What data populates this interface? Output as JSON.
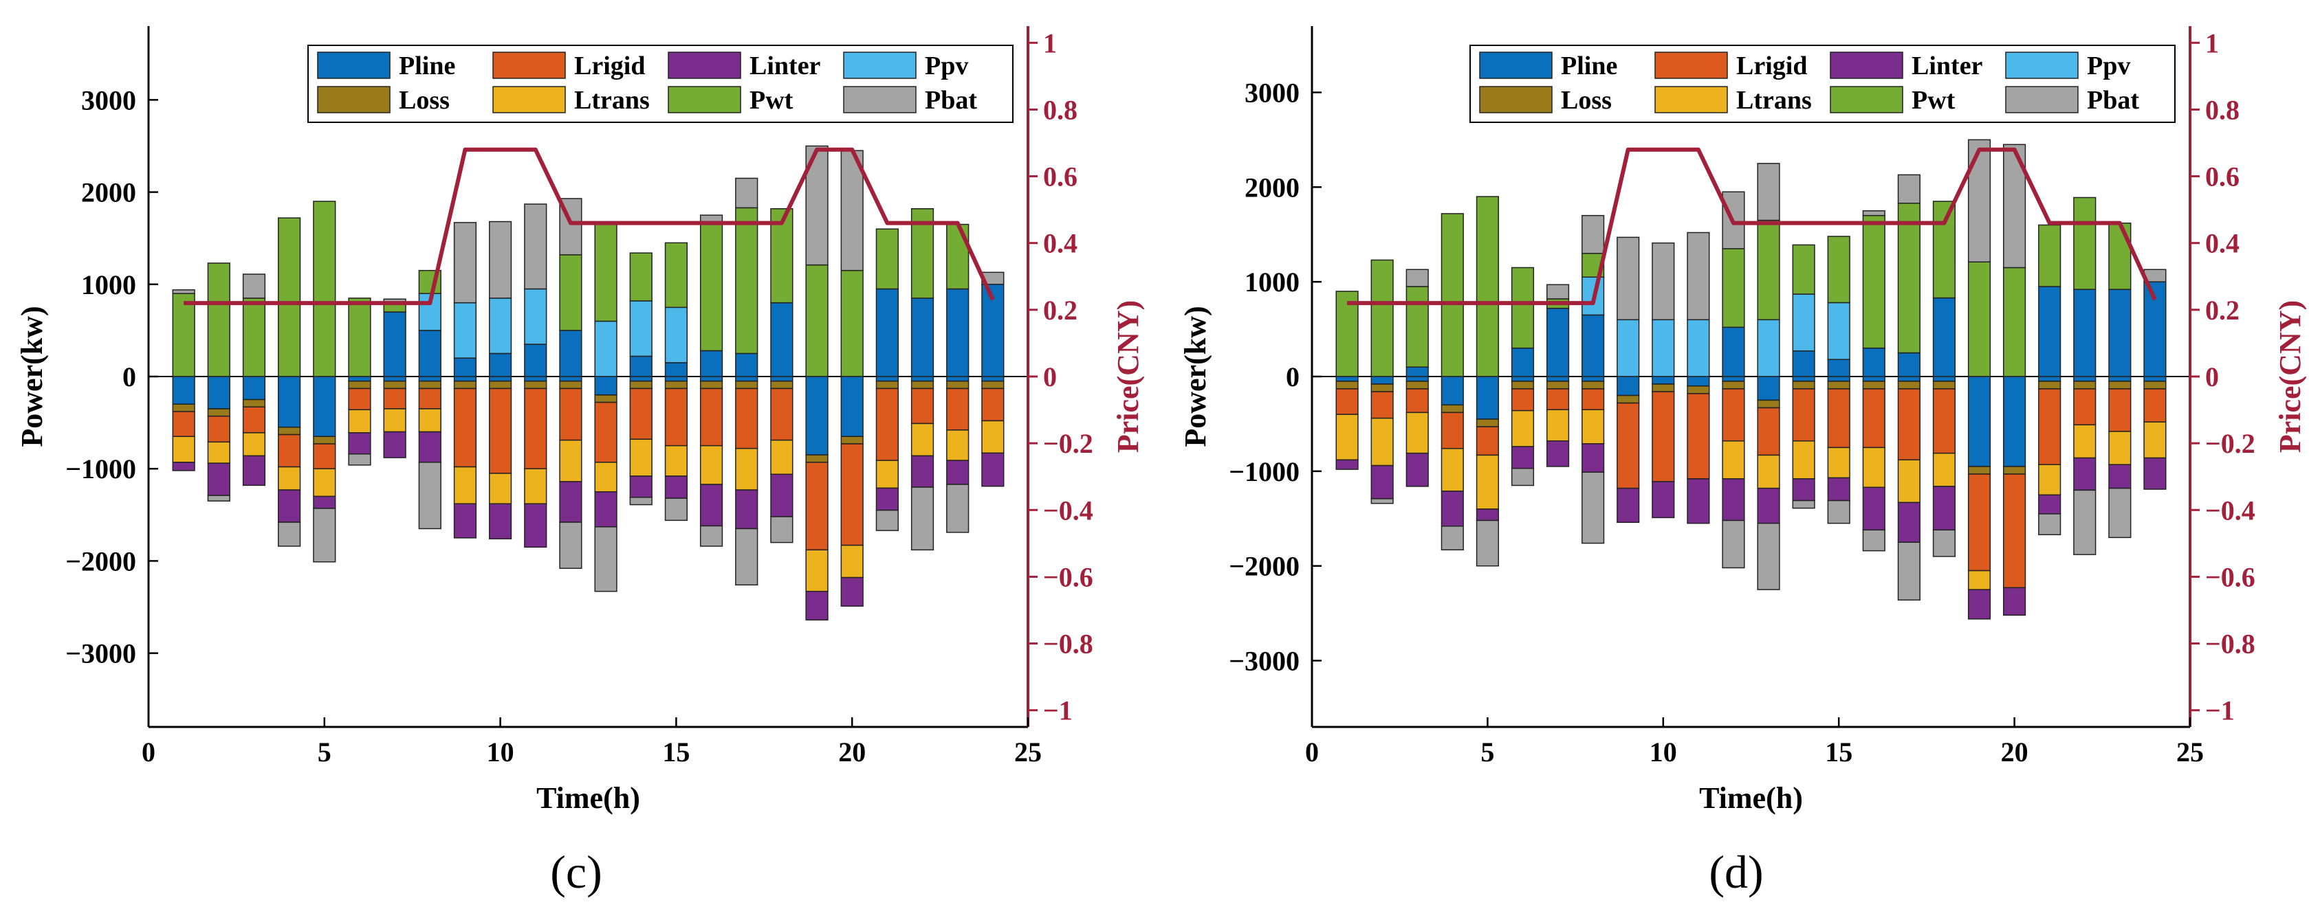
{
  "colors": {
    "Pline": "#0a6fbd",
    "Lrigid": "#dc5a1e",
    "Linter": "#7b2d8e",
    "Ppv": "#4db8ea",
    "Loss": "#9a7b1c",
    "Ltrans": "#edb31f",
    "Pwt": "#74ac34",
    "Pbat": "#a4a4a4",
    "price": "#a2203a"
  },
  "chart_data": [
    {
      "panel_label": "(c)",
      "type": "bar",
      "stacked": true,
      "xlabel": "Time(h)",
      "ylabel": "Power(kw)",
      "y2label": "Price(CNY)",
      "xlim": [
        0,
        25
      ],
      "ylim": [
        -3800,
        3800
      ],
      "y2lim": [
        -1.05,
        1.05
      ],
      "xticks": [
        0,
        5,
        10,
        15,
        20,
        25
      ],
      "yticks": [
        -3000,
        -2000,
        -1000,
        0,
        1000,
        2000,
        3000
      ],
      "y2ticks": [
        -1,
        -0.8,
        -0.6,
        -0.4,
        -0.2,
        0,
        0.2,
        0.4,
        0.6,
        0.8,
        1
      ],
      "y2ticklabels": [
        "−1",
        "−0.8",
        "−0.6",
        "−0.4",
        "−0.2",
        "0",
        "0.2",
        "0.4",
        "0.6",
        "0.8",
        "1"
      ],
      "yticklabels": [
        "−3000",
        "−2000",
        "−1000",
        "0",
        "1000",
        "2000",
        "3000"
      ],
      "legend": {
        "position": "top-right",
        "entries": [
          "Pline",
          "Lrigid",
          "Linter",
          "Ppv",
          "Loss",
          "Ltrans",
          "Pwt",
          "Pbat"
        ]
      },
      "x": [
        1,
        2,
        3,
        4,
        5,
        6,
        7,
        8,
        9,
        10,
        11,
        12,
        13,
        14,
        15,
        16,
        17,
        18,
        19,
        20,
        21,
        22,
        23,
        24
      ],
      "positive_series": [
        {
          "name": "Pline",
          "values": [
            0,
            0,
            0,
            0,
            0,
            0,
            700,
            500,
            200,
            250,
            350,
            500,
            0,
            220,
            150,
            280,
            250,
            800,
            0,
            0,
            950,
            850,
            950,
            1000
          ]
        },
        {
          "name": "Ppv",
          "values": [
            0,
            0,
            0,
            0,
            0,
            0,
            0,
            400,
            600,
            600,
            600,
            0,
            600,
            600,
            600,
            0,
            0,
            0,
            0,
            0,
            0,
            0,
            0,
            0
          ]
        },
        {
          "name": "Pwt",
          "values": [
            900,
            1230,
            850,
            1720,
            1900,
            850,
            100,
            250,
            0,
            0,
            0,
            820,
            1050,
            520,
            700,
            1400,
            1580,
            1020,
            1210,
            1150,
            650,
            970,
            700,
            0
          ]
        },
        {
          "name": "Pbat",
          "values": [
            40,
            0,
            260,
            0,
            0,
            0,
            40,
            0,
            870,
            830,
            920,
            610,
            0,
            0,
            0,
            70,
            320,
            0,
            1290,
            1300,
            0,
            0,
            0,
            130
          ]
        }
      ],
      "negative_series": [
        {
          "name": "Pline",
          "values": [
            -300,
            -350,
            -250,
            -550,
            -650,
            -50,
            -50,
            -50,
            -50,
            -50,
            -50,
            -50,
            -200,
            -50,
            -50,
            -50,
            -50,
            -50,
            -850,
            -650,
            -50,
            -50,
            -50,
            -50
          ]
        },
        {
          "name": "Loss",
          "values": [
            -80,
            -80,
            -80,
            -80,
            -80,
            -80,
            -80,
            -80,
            -80,
            -80,
            -80,
            -80,
            -80,
            -80,
            -80,
            -80,
            -80,
            -80,
            -80,
            -80,
            -80,
            -80,
            -80,
            -80
          ]
        },
        {
          "name": "Lrigid",
          "values": [
            -270,
            -280,
            -280,
            -350,
            -270,
            -230,
            -220,
            -220,
            -850,
            -920,
            -870,
            -560,
            -650,
            -550,
            -620,
            -620,
            -650,
            -560,
            -950,
            -1100,
            -780,
            -380,
            -450,
            -350
          ]
        },
        {
          "name": "Ltrans",
          "values": [
            -280,
            -230,
            -250,
            -250,
            -300,
            -250,
            -250,
            -250,
            -400,
            -330,
            -380,
            -450,
            -320,
            -400,
            -330,
            -420,
            -450,
            -370,
            -450,
            -350,
            -300,
            -350,
            -330,
            -350
          ]
        },
        {
          "name": "Linter",
          "values": [
            -90,
            -350,
            -320,
            -350,
            -130,
            -230,
            -280,
            -330,
            -370,
            -380,
            -470,
            -440,
            -380,
            -230,
            -240,
            -450,
            -420,
            -460,
            -310,
            -310,
            -240,
            -340,
            -260,
            -360
          ]
        },
        {
          "name": "Pbat",
          "values": [
            0,
            -60,
            0,
            -260,
            -580,
            -120,
            0,
            -720,
            0,
            0,
            0,
            -500,
            -700,
            -80,
            -240,
            -220,
            -610,
            -280,
            0,
            0,
            -220,
            -680,
            -520,
            0
          ]
        }
      ],
      "price": {
        "name": "Price",
        "x": [
          1,
          8,
          9,
          11,
          12,
          18,
          19,
          20,
          21,
          23,
          24
        ],
        "values": [
          0.22,
          0.22,
          0.68,
          0.68,
          0.46,
          0.46,
          0.68,
          0.68,
          0.46,
          0.46,
          0.23
        ]
      }
    },
    {
      "panel_label": "(d)",
      "type": "bar",
      "stacked": true,
      "xlabel": "Time(h)",
      "ylabel": "Power(kw)",
      "y2label": "Price(CNY)",
      "xlim": [
        0,
        25
      ],
      "ylim": [
        -3700,
        3700
      ],
      "y2lim": [
        -1.05,
        1.05
      ],
      "xticks": [
        0,
        5,
        10,
        15,
        20,
        25
      ],
      "yticks": [
        -3000,
        -2000,
        -1000,
        0,
        1000,
        2000,
        3000
      ],
      "y2ticks": [
        -1,
        -0.8,
        -0.6,
        -0.4,
        -0.2,
        0,
        0.2,
        0.4,
        0.6,
        0.8,
        1
      ],
      "y2ticklabels": [
        "−1",
        "−0.8",
        "−0.6",
        "−0.4",
        "−0.2",
        "0",
        "0.2",
        "0.4",
        "0.6",
        "0.8",
        "1"
      ],
      "yticklabels": [
        "−3000",
        "−2000",
        "−1000",
        "0",
        "1000",
        "2000",
        "3000"
      ],
      "legend": {
        "position": "top-right",
        "entries": [
          "Pline",
          "Lrigid",
          "Linter",
          "Ppv",
          "Loss",
          "Ltrans",
          "Pwt",
          "Pbat"
        ]
      },
      "x": [
        1,
        2,
        3,
        4,
        5,
        6,
        7,
        8,
        9,
        10,
        11,
        12,
        13,
        14,
        15,
        16,
        17,
        18,
        19,
        20,
        21,
        22,
        23,
        24
      ],
      "positive_series": [
        {
          "name": "Pline",
          "values": [
            0,
            0,
            100,
            0,
            0,
            300,
            720,
            650,
            0,
            0,
            0,
            520,
            0,
            270,
            180,
            300,
            250,
            830,
            0,
            0,
            950,
            920,
            920,
            1000
          ]
        },
        {
          "name": "Ppv",
          "values": [
            0,
            0,
            0,
            0,
            0,
            0,
            0,
            400,
            600,
            600,
            600,
            0,
            600,
            600,
            600,
            0,
            0,
            0,
            0,
            0,
            0,
            0,
            0,
            0
          ]
        },
        {
          "name": "Pwt",
          "values": [
            900,
            1230,
            850,
            1720,
            1900,
            850,
            100,
            250,
            0,
            0,
            0,
            830,
            1050,
            520,
            700,
            1400,
            1580,
            1020,
            1210,
            1150,
            650,
            970,
            700,
            0
          ]
        },
        {
          "name": "Pbat",
          "values": [
            0,
            0,
            180,
            0,
            0,
            0,
            150,
            400,
            870,
            810,
            920,
            600,
            600,
            0,
            0,
            50,
            300,
            0,
            1290,
            1300,
            0,
            0,
            0,
            130
          ]
        }
      ],
      "negative_series": [
        {
          "name": "Pline",
          "values": [
            -50,
            -80,
            -50,
            -300,
            -450,
            -50,
            -50,
            -50,
            -200,
            -80,
            -100,
            -50,
            -250,
            -50,
            -50,
            -50,
            -50,
            -50,
            -950,
            -950,
            -50,
            -50,
            -50,
            -50
          ]
        },
        {
          "name": "Loss",
          "values": [
            -80,
            -80,
            -80,
            -80,
            -80,
            -80,
            -80,
            -80,
            -80,
            -80,
            -80,
            -80,
            -80,
            -80,
            -80,
            -80,
            -80,
            -80,
            -80,
            -80,
            -80,
            -80,
            -80,
            -80
          ]
        },
        {
          "name": "Lrigid",
          "values": [
            -270,
            -280,
            -250,
            -380,
            -300,
            -230,
            -220,
            -220,
            -900,
            -950,
            -900,
            -550,
            -500,
            -550,
            -620,
            -620,
            -750,
            -680,
            -1020,
            -1200,
            -800,
            -380,
            -450,
            -350
          ]
        },
        {
          "name": "Ltrans",
          "values": [
            -480,
            -500,
            -430,
            -450,
            -570,
            -380,
            -330,
            -360,
            0,
            0,
            0,
            -400,
            -350,
            -400,
            -320,
            -420,
            -450,
            -350,
            -200,
            0,
            -320,
            -350,
            -350,
            -380
          ]
        },
        {
          "name": "Linter",
          "values": [
            -100,
            -350,
            -350,
            -370,
            -120,
            -230,
            -270,
            -300,
            -360,
            -380,
            -470,
            -440,
            -370,
            -230,
            -240,
            -450,
            -420,
            -460,
            -310,
            -290,
            -200,
            -340,
            -250,
            -330
          ]
        },
        {
          "name": "Pbat",
          "values": [
            0,
            -50,
            0,
            -250,
            -480,
            -180,
            0,
            -750,
            0,
            0,
            0,
            -500,
            -700,
            -80,
            -240,
            -220,
            -610,
            -280,
            0,
            0,
            -220,
            -680,
            -520,
            0
          ]
        }
      ],
      "price": {
        "name": "Price",
        "x": [
          1,
          8,
          9,
          11,
          12,
          18,
          19,
          20,
          21,
          23,
          24
        ],
        "values": [
          0.22,
          0.22,
          0.68,
          0.68,
          0.46,
          0.46,
          0.68,
          0.68,
          0.46,
          0.46,
          0.23
        ]
      }
    }
  ]
}
